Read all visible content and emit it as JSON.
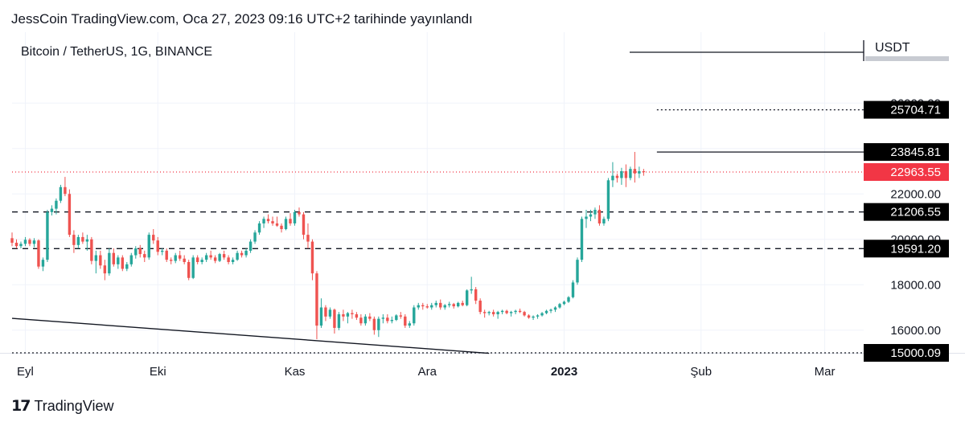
{
  "header": {
    "publish_line": "JessCoin TradingView.com, Oca 27, 2023 09:16 UTC+2 tarihinde yayınlandı"
  },
  "footer": {
    "brand": "TradingView",
    "brand_icon": "tradingview-logo-icon"
  },
  "colors": {
    "up": "#26a69a",
    "down": "#ef5350",
    "grid": "#f0f3fa",
    "text": "#131722",
    "price_badge": "#000000",
    "last_badge": "#f23645"
  },
  "chart_data": {
    "type": "candlestick",
    "title": "Bitcoin / TetherUS, 1G, BINANCE",
    "currency_label": "USDT",
    "ylim": [
      15000,
      27000
    ],
    "xlim": [
      "2022-08-29",
      "2023-03-08"
    ],
    "x_tick_labels": [
      {
        "date": "2022-09-01",
        "label": "Eyl",
        "bold": false
      },
      {
        "date": "2022-10-01",
        "label": "Eki",
        "bold": false
      },
      {
        "date": "2022-11-01",
        "label": "Kas",
        "bold": false
      },
      {
        "date": "2022-12-01",
        "label": "Ara",
        "bold": false
      },
      {
        "date": "2023-01-01",
        "label": "2023",
        "bold": true
      },
      {
        "date": "2023-02-01",
        "label": "Şub",
        "bold": false
      },
      {
        "date": "2023-03-01",
        "label": "Mar",
        "bold": false
      }
    ],
    "y_tick_labels": [
      "16000.00",
      "18000.00",
      "20000.00",
      "22000.00",
      "24000.00",
      "26000.00"
    ],
    "price_badges": [
      {
        "label": "25704.71",
        "value": 25704.71,
        "style": "black"
      },
      {
        "label": "23845.81",
        "value": 23845.81,
        "style": "black"
      },
      {
        "label": "22963.55",
        "value": 22963.55,
        "style": "last"
      },
      {
        "label": "21206.55",
        "value": 21206.55,
        "style": "black"
      },
      {
        "label": "19591.20",
        "value": 19591.2,
        "style": "black"
      },
      {
        "label": "15000.09",
        "value": 15000.09,
        "style": "black"
      }
    ],
    "horizontal_lines": [
      {
        "value": 25704.71,
        "style": "dotted",
        "from": "2023-01-22"
      },
      {
        "value": 23845.81,
        "style": "solid",
        "from": "2023-01-22"
      },
      {
        "value": 22963.55,
        "style": "dotted-red",
        "from": "2022-08-29"
      },
      {
        "value": 21206.55,
        "style": "dashed",
        "from": "2022-08-29"
      },
      {
        "value": 19591.2,
        "style": "dashed",
        "from": "2022-08-29"
      },
      {
        "value": 15000.09,
        "style": "dotted",
        "from": "2022-08-29"
      }
    ],
    "trendline": {
      "from": {
        "date": "2022-08-29",
        "value": 16520
      },
      "to": {
        "date": "2022-12-15",
        "value": 14980
      }
    },
    "candle_start": "2022-08-29",
    "candles": [
      [
        20050,
        20300,
        19700,
        19850
      ],
      [
        19850,
        20000,
        19600,
        19700
      ],
      [
        19700,
        19900,
        19600,
        19800
      ],
      [
        19800,
        20100,
        19700,
        19980
      ],
      [
        19980,
        20050,
        19700,
        19800
      ],
      [
        19800,
        20050,
        19650,
        19950
      ],
      [
        19950,
        20000,
        18700,
        18800
      ],
      [
        18800,
        19200,
        18600,
        19100
      ],
      [
        19100,
        21300,
        19000,
        21200
      ],
      [
        21200,
        21500,
        21050,
        21350
      ],
      [
        21350,
        21800,
        21100,
        21700
      ],
      [
        21700,
        22400,
        21600,
        22300
      ],
      [
        22300,
        22750,
        21900,
        22000
      ],
      [
        22000,
        22200,
        20100,
        20200
      ],
      [
        20200,
        20400,
        19400,
        19750
      ],
      [
        19750,
        20200,
        19600,
        20100
      ],
      [
        20100,
        20300,
        19800,
        19900
      ],
      [
        19900,
        20200,
        19500,
        20000
      ],
      [
        20000,
        20100,
        18900,
        19050
      ],
      [
        19050,
        19500,
        18500,
        19300
      ],
      [
        19300,
        19500,
        18700,
        18850
      ],
      [
        18850,
        19100,
        18200,
        18500
      ],
      [
        18500,
        19600,
        18400,
        19400
      ],
      [
        19400,
        19600,
        18800,
        18900
      ],
      [
        18900,
        19300,
        18700,
        19200
      ],
      [
        19200,
        19300,
        18600,
        18700
      ],
      [
        18700,
        19000,
        18600,
        18900
      ],
      [
        18900,
        19400,
        18800,
        19300
      ],
      [
        19300,
        19700,
        19150,
        19600
      ],
      [
        19600,
        19750,
        19200,
        19350
      ],
      [
        19350,
        19500,
        19000,
        19200
      ],
      [
        19200,
        20300,
        19100,
        20200
      ],
      [
        20200,
        20450,
        19800,
        19950
      ],
      [
        19950,
        20100,
        19300,
        19450
      ],
      [
        19450,
        19600,
        19300,
        19500
      ],
      [
        19500,
        19600,
        19000,
        19100
      ],
      [
        19100,
        19200,
        18900,
        19050
      ],
      [
        19050,
        19400,
        18950,
        19300
      ],
      [
        19300,
        19500,
        19050,
        19150
      ],
      [
        19150,
        19300,
        18900,
        19000
      ],
      [
        19000,
        19100,
        18200,
        18300
      ],
      [
        18300,
        19300,
        18250,
        19200
      ],
      [
        19200,
        19300,
        18900,
        19000
      ],
      [
        19000,
        19200,
        18900,
        19100
      ],
      [
        19100,
        19400,
        19000,
        19300
      ],
      [
        19300,
        19500,
        19100,
        19200
      ],
      [
        19200,
        19300,
        18950,
        19050
      ],
      [
        19050,
        19400,
        19000,
        19350
      ],
      [
        19350,
        19500,
        19100,
        19200
      ],
      [
        19200,
        19300,
        18900,
        19000
      ],
      [
        19000,
        19200,
        18900,
        19100
      ],
      [
        19100,
        19500,
        19050,
        19400
      ],
      [
        19400,
        19500,
        19200,
        19300
      ],
      [
        19300,
        19600,
        19200,
        19500
      ],
      [
        19500,
        20000,
        19400,
        19900
      ],
      [
        19900,
        20400,
        19800,
        20300
      ],
      [
        20300,
        20800,
        20200,
        20700
      ],
      [
        20700,
        21000,
        20500,
        20900
      ],
      [
        20900,
        21100,
        20700,
        20800
      ],
      [
        20800,
        21000,
        20600,
        20700
      ],
      [
        20700,
        21000,
        20550,
        20600
      ],
      [
        20600,
        20700,
        20300,
        20450
      ],
      [
        20450,
        21000,
        20400,
        20900
      ],
      [
        20900,
        21150,
        20600,
        20700
      ],
      [
        20700,
        21300,
        20600,
        21200
      ],
      [
        21200,
        21400,
        21000,
        21100
      ],
      [
        21100,
        21200,
        20000,
        20200
      ],
      [
        20200,
        20700,
        19600,
        19900
      ],
      [
        19900,
        20000,
        18200,
        18500
      ],
      [
        18500,
        18600,
        15600,
        16200
      ],
      [
        16200,
        17400,
        16100,
        17000
      ],
      [
        17000,
        17100,
        16400,
        16600
      ],
      [
        16600,
        17000,
        16500,
        16900
      ],
      [
        16900,
        16950,
        15850,
        16100
      ],
      [
        16100,
        16800,
        16000,
        16700
      ],
      [
        16700,
        16900,
        16400,
        16600
      ],
      [
        16600,
        16800,
        16300,
        16750
      ],
      [
        16750,
        16900,
        16500,
        16700
      ],
      [
        16700,
        16800,
        16450,
        16550
      ],
      [
        16550,
        16700,
        16200,
        16300
      ],
      [
        16300,
        16700,
        16200,
        16600
      ],
      [
        16600,
        16750,
        16400,
        16500
      ],
      [
        16500,
        16600,
        15800,
        16000
      ],
      [
        16000,
        16600,
        15700,
        16500
      ],
      [
        16500,
        16700,
        16300,
        16550
      ],
      [
        16550,
        16700,
        16300,
        16400
      ],
      [
        16400,
        16600,
        16300,
        16450
      ],
      [
        16450,
        16700,
        16400,
        16650
      ],
      [
        16650,
        16800,
        16500,
        16600
      ],
      [
        16600,
        16700,
        16100,
        16200
      ],
      [
        16200,
        16400,
        16100,
        16300
      ],
      [
        16300,
        17100,
        16200,
        17000
      ],
      [
        17000,
        17200,
        16900,
        17100
      ],
      [
        17100,
        17200,
        16900,
        17050
      ],
      [
        17050,
        17150,
        16950,
        17000
      ],
      [
        17000,
        17200,
        16900,
        17100
      ],
      [
        17100,
        17300,
        17000,
        17200
      ],
      [
        17200,
        17350,
        16900,
        17000
      ],
      [
        17000,
        17150,
        16900,
        17100
      ],
      [
        17100,
        17250,
        17000,
        17150
      ],
      [
        17150,
        17200,
        16950,
        17050
      ],
      [
        17050,
        17250,
        17000,
        17200
      ],
      [
        17200,
        17300,
        17050,
        17100
      ],
      [
        17100,
        17800,
        17050,
        17750
      ],
      [
        17750,
        18350,
        17600,
        17800
      ],
      [
        17800,
        17900,
        17150,
        17300
      ],
      [
        17300,
        17400,
        16700,
        16800
      ],
      [
        16800,
        16900,
        16550,
        16750
      ],
      [
        16750,
        16850,
        16650,
        16800
      ],
      [
        16800,
        16900,
        16600,
        16700
      ],
      [
        16700,
        16850,
        16500,
        16800
      ],
      [
        16800,
        16900,
        16700,
        16850
      ],
      [
        16850,
        16900,
        16700,
        16750
      ],
      [
        16750,
        16850,
        16600,
        16800
      ],
      [
        16800,
        16900,
        16700,
        16850
      ],
      [
        16850,
        16950,
        16750,
        16800
      ],
      [
        16800,
        16850,
        16600,
        16650
      ],
      [
        16650,
        16700,
        16500,
        16550
      ],
      [
        16550,
        16650,
        16450,
        16600
      ],
      [
        16600,
        16700,
        16500,
        16650
      ],
      [
        16650,
        16800,
        16600,
        16750
      ],
      [
        16750,
        16900,
        16700,
        16850
      ],
      [
        16850,
        16950,
        16750,
        16900
      ],
      [
        16900,
        17050,
        16800,
        17000
      ],
      [
        17000,
        17200,
        16950,
        17150
      ],
      [
        17150,
        17300,
        17100,
        17250
      ],
      [
        17250,
        17500,
        17200,
        17450
      ],
      [
        17450,
        18200,
        17400,
        18100
      ],
      [
        18100,
        19200,
        18000,
        19100
      ],
      [
        19100,
        21000,
        19000,
        20900
      ],
      [
        20900,
        21300,
        20500,
        21000
      ],
      [
        21000,
        21300,
        20800,
        21100
      ],
      [
        21100,
        21400,
        20900,
        21300
      ],
      [
        21300,
        21500,
        20600,
        20700
      ],
      [
        20700,
        21000,
        20600,
        20900
      ],
      [
        20900,
        22700,
        20800,
        22600
      ],
      [
        22600,
        23400,
        22300,
        22800
      ],
      [
        22800,
        22900,
        22500,
        22700
      ],
      [
        22700,
        23150,
        22400,
        23000
      ],
      [
        23000,
        23300,
        22300,
        22700
      ],
      [
        22700,
        23200,
        22600,
        23100
      ],
      [
        23100,
        23850,
        22500,
        22900
      ],
      [
        22900,
        23200,
        22700,
        23000
      ],
      [
        23000,
        23100,
        22800,
        22960
      ]
    ]
  }
}
